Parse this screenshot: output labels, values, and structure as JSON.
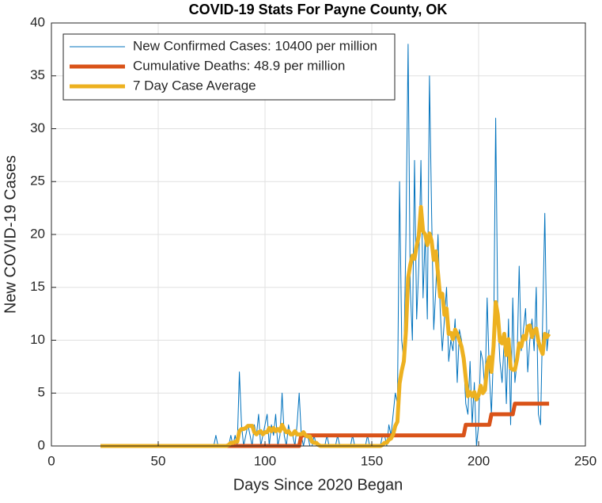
{
  "chart_data": {
    "type": "line",
    "title": "COVID-19 Stats For Payne County, OK",
    "xlabel": "Days Since 2020 Began",
    "ylabel": "New COVID-19 Cases",
    "xlim": [
      0,
      250
    ],
    "xticks": [
      0,
      50,
      100,
      150,
      200,
      250
    ],
    "ylim": [
      0,
      40
    ],
    "yticks": [
      0,
      5,
      10,
      15,
      20,
      25,
      30,
      35,
      40
    ],
    "grid": true,
    "legend": "upper-left",
    "x": [
      23,
      24,
      25,
      26,
      27,
      28,
      29,
      30,
      31,
      32,
      33,
      34,
      35,
      36,
      37,
      38,
      39,
      40,
      41,
      42,
      43,
      44,
      45,
      46,
      47,
      48,
      49,
      50,
      51,
      52,
      53,
      54,
      55,
      56,
      57,
      58,
      59,
      60,
      61,
      62,
      63,
      64,
      65,
      66,
      67,
      68,
      69,
      70,
      71,
      72,
      73,
      74,
      75,
      76,
      77,
      78,
      79,
      80,
      81,
      82,
      83,
      84,
      85,
      86,
      87,
      88,
      89,
      90,
      91,
      92,
      93,
      94,
      95,
      96,
      97,
      98,
      99,
      100,
      101,
      102,
      103,
      104,
      105,
      106,
      107,
      108,
      109,
      110,
      111,
      112,
      113,
      114,
      115,
      116,
      117,
      118,
      119,
      120,
      121,
      122,
      123,
      124,
      125,
      126,
      127,
      128,
      129,
      130,
      131,
      132,
      133,
      134,
      135,
      136,
      137,
      138,
      139,
      140,
      141,
      142,
      143,
      144,
      145,
      146,
      147,
      148,
      149,
      150,
      151,
      152,
      153,
      154,
      155,
      156,
      157,
      158,
      159,
      160,
      161,
      162,
      163,
      164,
      165,
      166,
      167,
      168,
      169,
      170,
      171,
      172,
      173,
      174,
      175,
      176,
      177,
      178,
      179,
      180,
      181,
      182,
      183,
      184,
      185,
      186,
      187,
      188,
      189,
      190,
      191,
      192,
      193,
      194,
      195,
      196,
      197,
      198,
      199,
      200,
      201,
      202,
      203,
      204,
      205,
      206,
      207,
      208,
      209,
      210,
      211,
      212,
      213,
      214,
      215,
      216,
      217,
      218,
      219,
      220,
      221,
      222,
      223,
      224,
      225,
      226,
      227,
      228,
      229,
      230,
      231,
      232,
      233
    ],
    "series": [
      {
        "name": "New Confirmed Cases: 10400 per million",
        "color": "#0072BD",
        "width": 1,
        "values": [
          0,
          0,
          0,
          0,
          0,
          0,
          0,
          0,
          0,
          0,
          0,
          0,
          0,
          0,
          0,
          0,
          0,
          0,
          0,
          0,
          0,
          0,
          0,
          0,
          0,
          0,
          0,
          0,
          0,
          0,
          0,
          0,
          0,
          0,
          0,
          0,
          0,
          0,
          0,
          0,
          0,
          0,
          0,
          0,
          0,
          0,
          0,
          0,
          0,
          0,
          0,
          0,
          0,
          0,
          1,
          0,
          0,
          0,
          0,
          0,
          0,
          1,
          0,
          1,
          0,
          7,
          2,
          0,
          1,
          2,
          1,
          0,
          2,
          1,
          3,
          0,
          1,
          2,
          3,
          0,
          2,
          1,
          3,
          0,
          1,
          5,
          1,
          0,
          2,
          1,
          1,
          0,
          2,
          5,
          1,
          0,
          1,
          1,
          0,
          0,
          1,
          0,
          0,
          0,
          0,
          0,
          1,
          0,
          0,
          0,
          0,
          1,
          0,
          0,
          0,
          0,
          0,
          0,
          1,
          0,
          0,
          0,
          0,
          0,
          0,
          1,
          0,
          0,
          0,
          0,
          0,
          0,
          1,
          1,
          0,
          2,
          1,
          3,
          5,
          4,
          25,
          10,
          8,
          20,
          38,
          15,
          10,
          27,
          12,
          17,
          27,
          14,
          20,
          12,
          35,
          22,
          11,
          15,
          20,
          13,
          9,
          12,
          15,
          8,
          10,
          9,
          12,
          6,
          11,
          10,
          8,
          4,
          3,
          8,
          2,
          6,
          0,
          2,
          9,
          8,
          5,
          14,
          7,
          3,
          9,
          31,
          12,
          8,
          6,
          10,
          4,
          12,
          2,
          14,
          6,
          8,
          17,
          9,
          11,
          13,
          7,
          10,
          12,
          9,
          15,
          3,
          2,
          12,
          22,
          9,
          11
        ]
      },
      {
        "name": "Cumulative Deaths: 48.9 per million",
        "color": "#D95319",
        "width": 5,
        "values": [
          0,
          0,
          0,
          0,
          0,
          0,
          0,
          0,
          0,
          0,
          0,
          0,
          0,
          0,
          0,
          0,
          0,
          0,
          0,
          0,
          0,
          0,
          0,
          0,
          0,
          0,
          0,
          0,
          0,
          0,
          0,
          0,
          0,
          0,
          0,
          0,
          0,
          0,
          0,
          0,
          0,
          0,
          0,
          0,
          0,
          0,
          0,
          0,
          0,
          0,
          0,
          0,
          0,
          0,
          0,
          0,
          0,
          0,
          0,
          0,
          0,
          0,
          0,
          0,
          0,
          0,
          0,
          0,
          0,
          0,
          0,
          0,
          0,
          0,
          0,
          0,
          0,
          0,
          0,
          0,
          0,
          0,
          0,
          0,
          0,
          0,
          0,
          0,
          0,
          0,
          0,
          0,
          0,
          0,
          1,
          1,
          1,
          1,
          1,
          1,
          1,
          1,
          1,
          1,
          1,
          1,
          1,
          1,
          1,
          1,
          1,
          1,
          1,
          1,
          1,
          1,
          1,
          1,
          1,
          1,
          1,
          1,
          1,
          1,
          1,
          1,
          1,
          1,
          1,
          1,
          1,
          1,
          1,
          1,
          1,
          1,
          1,
          1,
          1,
          1,
          1,
          1,
          1,
          1,
          1,
          1,
          1,
          1,
          1,
          1,
          1,
          1,
          1,
          1,
          1,
          1,
          1,
          1,
          1,
          1,
          1,
          1,
          1,
          1,
          1,
          1,
          1,
          1,
          1,
          1,
          1,
          2,
          2,
          2,
          2,
          2,
          2,
          2,
          2,
          2,
          2,
          2,
          2,
          3,
          3,
          3,
          3,
          3,
          3,
          3,
          3,
          3,
          3,
          3,
          4,
          4,
          4,
          4,
          4,
          4,
          4,
          4,
          4,
          4,
          4,
          4,
          4,
          4,
          4,
          4,
          4
        ]
      },
      {
        "name": "7 Day Case Average",
        "color": "#EDB120",
        "width": 5,
        "values": [
          0,
          0,
          0,
          0,
          0,
          0,
          0,
          0,
          0,
          0,
          0,
          0,
          0,
          0,
          0,
          0,
          0,
          0,
          0,
          0,
          0,
          0,
          0,
          0,
          0,
          0,
          0,
          0,
          0,
          0,
          0,
          0,
          0,
          0,
          0,
          0,
          0,
          0,
          0,
          0,
          0,
          0,
          0,
          0,
          0,
          0,
          0,
          0,
          0,
          0,
          0,
          0,
          0,
          0,
          0,
          0,
          0,
          0,
          0,
          0,
          0.1,
          0.3,
          0.3,
          0.4,
          0.4,
          1.4,
          1.6,
          1.6,
          1.7,
          1.9,
          1.9,
          1.9,
          1.3,
          1.1,
          1.3,
          1.4,
          1.1,
          1.3,
          1.3,
          1.7,
          1.4,
          1.7,
          1.4,
          1.6,
          1.4,
          2.0,
          1.6,
          1.3,
          1.4,
          1.1,
          1.1,
          1.4,
          1.1,
          1.1,
          1.1,
          1.3,
          1.0,
          0.9,
          0.9,
          0.4,
          0.3,
          0.3,
          0.1,
          0,
          0,
          0,
          0,
          0,
          0,
          0,
          0,
          0,
          0,
          0,
          0,
          0,
          0,
          0,
          0,
          0,
          0,
          0,
          0,
          0,
          0,
          0,
          0,
          0,
          0,
          0,
          0,
          0,
          0.1,
          0.3,
          0.3,
          0.6,
          0.7,
          1.1,
          1.9,
          2.3,
          5.9,
          7.1,
          8.0,
          10.9,
          15.9,
          17.1,
          18.0,
          17.7,
          18.9,
          19.9,
          22.6,
          20.3,
          20.0,
          19.0,
          20.1,
          19.4,
          17.6,
          18.4,
          16.3,
          14.1,
          14.4,
          12.4,
          13.0,
          10.6,
          10.7,
          10.1,
          11.0,
          10.6,
          10.0,
          9.4,
          8.3,
          6.4,
          4.7,
          5.1,
          4.7,
          5.1,
          4.4,
          4.8,
          5.7,
          5.0,
          5.3,
          7.6,
          8.4,
          7.0,
          9.4,
          13.6,
          12.4,
          9.9,
          9.7,
          10.6,
          8.6,
          10.1,
          7.4,
          7.2,
          7.2,
          8.2,
          9.7,
          9.4,
          10.4,
          10.1,
          11.3,
          11.4,
          10.3,
          10.9,
          11.1,
          9.9,
          9.2,
          8.7,
          10.6,
          10.3,
          10.6
        ]
      }
    ]
  }
}
